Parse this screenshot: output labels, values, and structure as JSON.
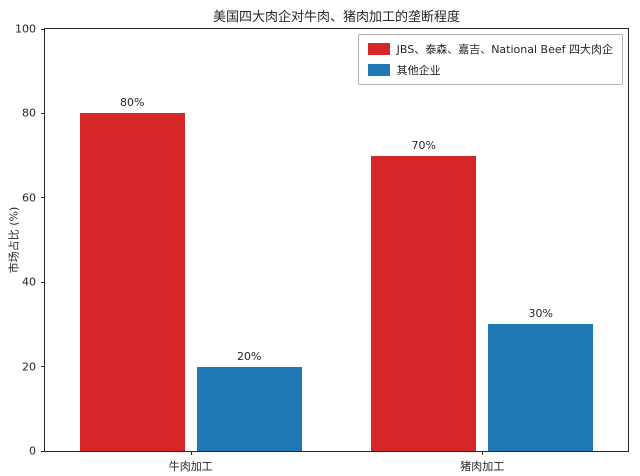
{
  "chart_data": {
    "type": "bar",
    "title": "美国四大肉企对牛肉、猪肉加工的垄断程度",
    "ylabel": "市场占比 (%)",
    "xlabel": "",
    "categories": [
      "牛肉加工",
      "猪肉加工"
    ],
    "series": [
      {
        "name": "JBS、泰森、嘉吉、National Beef 四大肉企",
        "color": "#d62728",
        "values": [
          80,
          70
        ]
      },
      {
        "name": "其他企业",
        "color": "#1f77b4",
        "values": [
          20,
          30
        ]
      }
    ],
    "value_label_suffix": "%",
    "ylim": [
      0,
      100
    ],
    "yticks": [
      0,
      20,
      40,
      60,
      80,
      100
    ],
    "grid": false,
    "legend_position": "upper right"
  }
}
